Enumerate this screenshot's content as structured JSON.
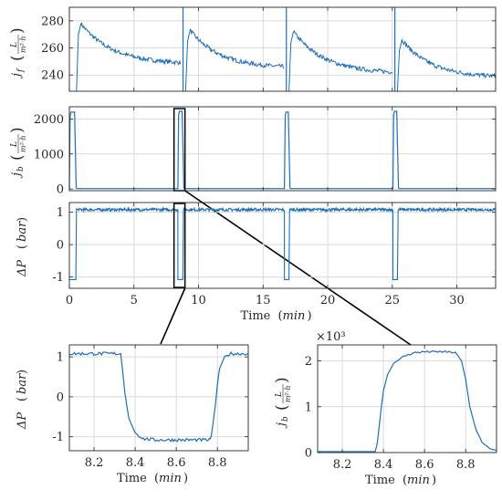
{
  "colors": {
    "line": "#1f6fb4",
    "axis": "#262626",
    "grid": "#d9d9d9",
    "callout": "#000000"
  },
  "chart_data": [
    {
      "id": "top",
      "type": "line",
      "ylabel": {
        "main": "j",
        "sub": "f",
        "unit_num": "L",
        "unit_den": "m²·h"
      },
      "xlim": [
        0,
        33
      ],
      "ylim": [
        228,
        290
      ],
      "yticks": [
        240,
        260,
        280
      ],
      "xticks": [
        0,
        5,
        10,
        15,
        20,
        25,
        30
      ],
      "show_xticklabels": false,
      "grid": true,
      "cycles": [
        {
          "start": 0.55,
          "end": 8.6,
          "peak": 278,
          "final": 248
        },
        {
          "start": 9.0,
          "end": 16.6,
          "peak": 273,
          "final": 245
        },
        {
          "start": 17.0,
          "end": 25.0,
          "peak": 272,
          "final": 241
        },
        {
          "start": 25.4,
          "end": 33.0,
          "peak": 266,
          "final": 238
        }
      ],
      "backwash_spikes": [
        8.8,
        16.8,
        25.2
      ]
    },
    {
      "id": "mid",
      "type": "line",
      "ylabel": {
        "main": "j",
        "sub": "b",
        "unit_num": "L",
        "unit_den": "m²·h"
      },
      "xlim": [
        0,
        33
      ],
      "ylim": [
        -50,
        2350
      ],
      "yticks": [
        0,
        1000,
        2000
      ],
      "xticks": [
        0,
        5,
        10,
        15,
        20,
        25,
        30
      ],
      "show_xticklabels": false,
      "grid": true,
      "pulses": [
        {
          "start": 0.0,
          "end": 0.45,
          "value": 2200
        },
        {
          "start": 8.4,
          "end": 8.78,
          "value": 2220
        },
        {
          "start": 16.65,
          "end": 17.0,
          "value": 2200
        },
        {
          "start": 25.05,
          "end": 25.4,
          "value": 2220
        }
      ],
      "highlight_box": [
        8.1,
        8.95
      ]
    },
    {
      "id": "bot",
      "type": "line",
      "ylabel": {
        "main": "ΔP",
        "unit": "bar"
      },
      "xlim": [
        0,
        33
      ],
      "ylim": [
        -1.35,
        1.3
      ],
      "yticks": [
        -1,
        0,
        1
      ],
      "xticks": [
        0,
        5,
        10,
        15,
        20,
        25,
        30
      ],
      "show_xticklabels": true,
      "xlabel": {
        "text": "Time",
        "unit": "min"
      },
      "grid": true,
      "pulses": [
        {
          "start": 0.0,
          "end": 0.5,
          "value": -1.08
        },
        {
          "start": 8.4,
          "end": 8.78,
          "value": -1.08
        },
        {
          "start": 16.65,
          "end": 17.0,
          "value": -1.08
        },
        {
          "start": 25.05,
          "end": 25.4,
          "value": -1.08
        }
      ],
      "baseline": 1.08,
      "highlight_box": [
        8.1,
        8.95
      ]
    },
    {
      "id": "zoomL",
      "type": "line",
      "ylabel": {
        "main": "ΔP",
        "unit": "bar"
      },
      "xlim": [
        8.08,
        8.95
      ],
      "ylim": [
        -1.35,
        1.3
      ],
      "yticks": [
        -1,
        0,
        1
      ],
      "xticks": [
        8.2,
        8.4,
        8.6,
        8.8
      ],
      "xlabel": {
        "text": "Time",
        "unit": "min"
      },
      "grid": true,
      "points": [
        [
          8.08,
          1.08
        ],
        [
          8.33,
          1.08
        ],
        [
          8.34,
          0.6
        ],
        [
          8.35,
          0.1
        ],
        [
          8.36,
          -0.25
        ],
        [
          8.37,
          -0.55
        ],
        [
          8.4,
          -0.9
        ],
        [
          8.44,
          -1.05
        ],
        [
          8.5,
          -1.08
        ],
        [
          8.76,
          -1.08
        ],
        [
          8.77,
          -1.0
        ],
        [
          8.78,
          -0.6
        ],
        [
          8.79,
          -0.2
        ],
        [
          8.8,
          0.3
        ],
        [
          8.81,
          0.7
        ],
        [
          8.83,
          0.95
        ],
        [
          8.86,
          1.08
        ],
        [
          8.95,
          1.08
        ]
      ]
    },
    {
      "id": "zoomR",
      "type": "line",
      "ylabel": {
        "main": "j",
        "sub": "b",
        "unit_num": "L",
        "unit_den": "m²·h"
      },
      "multiplier": "×10³",
      "xlim": [
        8.08,
        8.95
      ],
      "ylim": [
        0,
        2.35
      ],
      "yticks": [
        0,
        1,
        2
      ],
      "xticks": [
        8.2,
        8.4,
        8.6,
        8.8
      ],
      "xlabel": {
        "text": "Time",
        "unit": "min"
      },
      "grid": true,
      "points": [
        [
          8.08,
          0.02
        ],
        [
          8.36,
          0.02
        ],
        [
          8.37,
          0.2
        ],
        [
          8.38,
          0.6
        ],
        [
          8.39,
          1.0
        ],
        [
          8.4,
          1.35
        ],
        [
          8.42,
          1.7
        ],
        [
          8.45,
          1.95
        ],
        [
          8.5,
          2.1
        ],
        [
          8.55,
          2.18
        ],
        [
          8.6,
          2.2
        ],
        [
          8.7,
          2.2
        ],
        [
          8.75,
          2.18
        ],
        [
          8.78,
          2.0
        ],
        [
          8.8,
          1.6
        ],
        [
          8.82,
          1.0
        ],
        [
          8.85,
          0.5
        ],
        [
          8.88,
          0.22
        ],
        [
          8.92,
          0.08
        ],
        [
          8.95,
          0.05
        ]
      ]
    }
  ]
}
